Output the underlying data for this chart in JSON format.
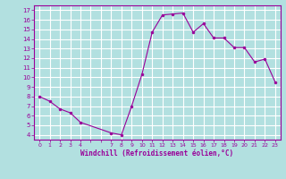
{
  "x": [
    0,
    1,
    2,
    3,
    4,
    7,
    8,
    9,
    10,
    11,
    12,
    13,
    14,
    15,
    16,
    17,
    18,
    19,
    20,
    21,
    22,
    23
  ],
  "y": [
    8.0,
    7.5,
    6.7,
    6.3,
    5.3,
    4.2,
    4.0,
    7.0,
    10.3,
    14.7,
    16.5,
    16.6,
    16.7,
    14.7,
    15.6,
    14.1,
    14.1,
    13.1,
    13.1,
    11.6,
    11.9,
    9.5
  ],
  "line_color": "#990099",
  "marker_color": "#990099",
  "bg_color": "#b2e0e0",
  "grid_color": "#ffffff",
  "xlabel": "Windchill (Refroidissement éolien,°C)",
  "xtick_labels": [
    "0",
    "1",
    "2",
    "3",
    "4",
    "",
    "",
    "7",
    "8",
    "9",
    "10",
    "11",
    "12",
    "13",
    "14",
    "15",
    "16",
    "17",
    "18",
    "19",
    "20",
    "21",
    "22",
    "23"
  ],
  "xticks_pos": [
    0,
    1,
    2,
    3,
    4,
    5,
    6,
    7,
    8,
    9,
    10,
    11,
    12,
    13,
    14,
    15,
    16,
    17,
    18,
    19,
    20,
    21,
    22,
    23
  ],
  "yticks": [
    4,
    5,
    6,
    7,
    8,
    9,
    10,
    11,
    12,
    13,
    14,
    15,
    16,
    17
  ],
  "ylim": [
    3.5,
    17.5
  ],
  "xlim": [
    -0.5,
    23.5
  ]
}
